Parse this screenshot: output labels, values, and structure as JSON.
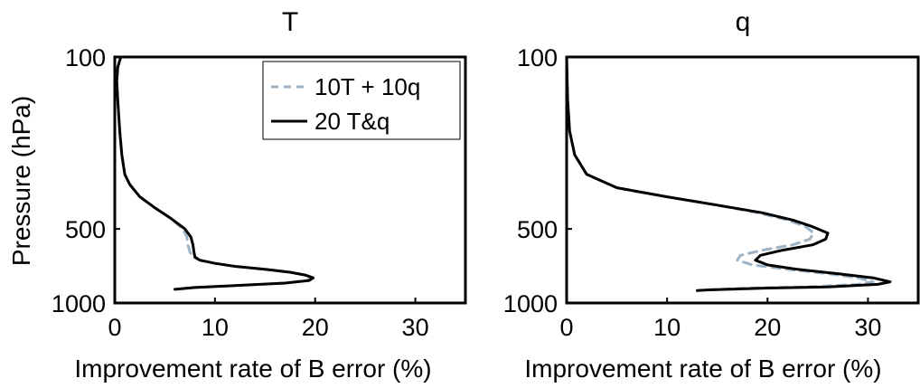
{
  "chart_data": [
    {
      "type": "line",
      "title": "T",
      "xlabel": "Improvement rate of B error (%)",
      "ylabel": "Pressure (hPa)",
      "xlim": [
        0,
        35
      ],
      "ylim": [
        1000,
        100
      ],
      "y_scale": "log",
      "y_inverted": true,
      "xticks": [
        "0",
        "10",
        "20",
        "30"
      ],
      "yticks": [
        "100",
        "500",
        "1000"
      ],
      "legend": {
        "position": "top-right",
        "entries": [
          "10T + 10q",
          "20 T&q"
        ]
      },
      "series": [
        {
          "name": "10T + 10q",
          "color": "#9eb3c6",
          "dash": true,
          "x": [
            0.6,
            0.3,
            0.2,
            0.3,
            0.5,
            0.7,
            1.0,
            1.5,
            2.5,
            4.0,
            5.5,
            6.8,
            7.2,
            7.3,
            7.5,
            7.8,
            8.5,
            10.0,
            12.0,
            15.0,
            17.5,
            19.0,
            19.6,
            19.2,
            17.0,
            12.0,
            8.0,
            6.0
          ],
          "y": [
            100,
            110,
            125,
            150,
            200,
            250,
            300,
            330,
            370,
            410,
            450,
            500,
            540,
            580,
            620,
            650,
            670,
            690,
            710,
            730,
            750,
            770,
            790,
            810,
            830,
            850,
            865,
            880
          ]
        },
        {
          "name": "20 T&q",
          "color": "#000000",
          "dash": false,
          "x": [
            0.6,
            0.3,
            0.2,
            0.3,
            0.5,
            0.7,
            1.0,
            1.5,
            2.5,
            4.0,
            5.5,
            7.0,
            7.6,
            7.8,
            7.9,
            8.0,
            8.5,
            10.0,
            12.0,
            15.0,
            17.5,
            19.0,
            19.8,
            19.4,
            17.0,
            12.0,
            8.0,
            6.0
          ],
          "y": [
            100,
            110,
            125,
            150,
            200,
            250,
            300,
            330,
            370,
            410,
            450,
            500,
            540,
            580,
            620,
            650,
            670,
            690,
            710,
            730,
            750,
            770,
            790,
            810,
            830,
            850,
            865,
            880
          ]
        }
      ]
    },
    {
      "type": "line",
      "title": "q",
      "xlabel": "Improvement rate of B error (%)",
      "ylabel": "",
      "xlim": [
        0,
        35
      ],
      "ylim": [
        1000,
        100
      ],
      "y_scale": "log",
      "y_inverted": true,
      "xticks": [
        "0",
        "10",
        "20",
        "30"
      ],
      "yticks": [
        "100",
        "500",
        "1000"
      ],
      "series": [
        {
          "name": "10T + 10q",
          "color": "#9eb3c6",
          "dash": true,
          "x": [
            0.0,
            0.1,
            0.3,
            0.8,
            2.0,
            5.0,
            10.0,
            15.0,
            19.0,
            22.0,
            23.8,
            24.6,
            24.2,
            22.5,
            19.5,
            17.3,
            17.0,
            18.5,
            22.0,
            26.0,
            29.0,
            30.5,
            29.0,
            24.0,
            18.0,
            15.0,
            13.5,
            13.0
          ],
          "y": [
            100,
            150,
            200,
            250,
            300,
            340,
            370,
            400,
            430,
            460,
            490,
            520,
            550,
            580,
            610,
            640,
            670,
            700,
            730,
            760,
            790,
            820,
            840,
            860,
            870,
            880,
            885,
            890
          ]
        },
        {
          "name": "20 T&q",
          "color": "#000000",
          "dash": false,
          "x": [
            0.0,
            0.1,
            0.3,
            0.8,
            2.0,
            5.0,
            10.0,
            15.0,
            19.5,
            22.5,
            24.5,
            26.0,
            25.8,
            24.5,
            21.5,
            19.3,
            18.8,
            20.0,
            23.0,
            27.0,
            30.5,
            32.2,
            31.0,
            26.0,
            20.0,
            16.0,
            14.0,
            13.0
          ],
          "y": [
            100,
            150,
            200,
            250,
            300,
            340,
            370,
            400,
            430,
            460,
            490,
            520,
            550,
            580,
            610,
            640,
            670,
            700,
            730,
            760,
            790,
            820,
            840,
            860,
            870,
            880,
            885,
            890
          ]
        }
      ]
    }
  ]
}
